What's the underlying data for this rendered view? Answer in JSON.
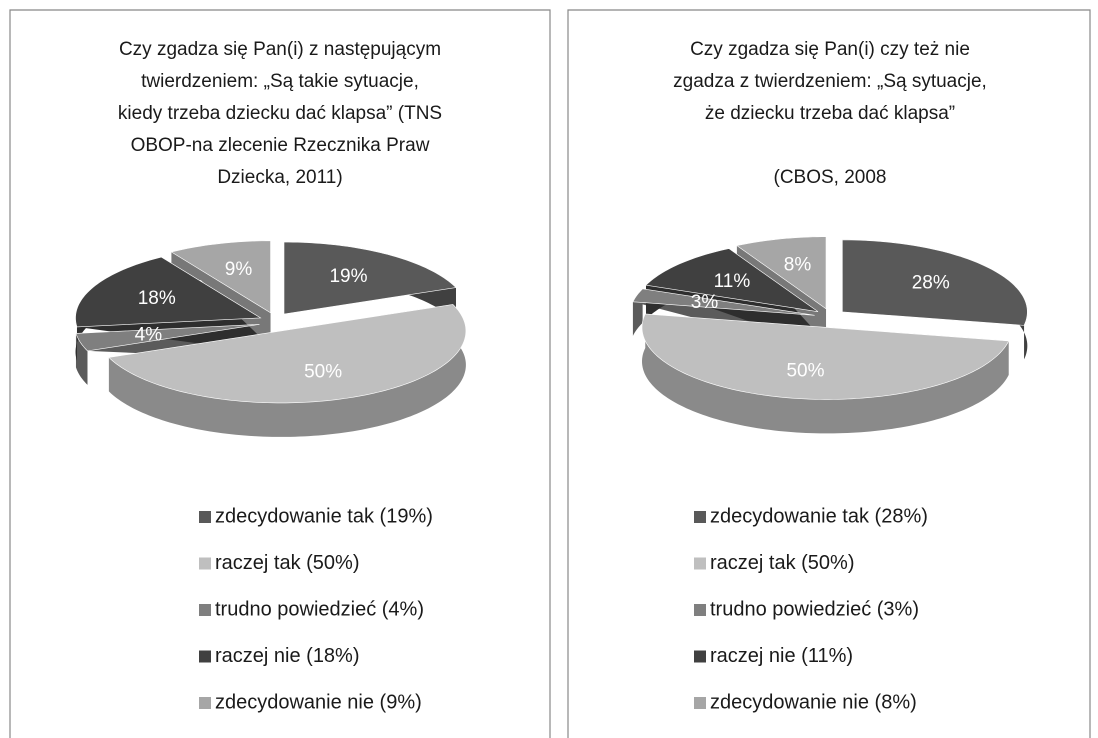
{
  "chart_data": [
    {
      "type": "pie",
      "title": [
        "Czy zgadza się Pan(i) z następującym",
        "twierdzeniem: „Są takie sytuacje,",
        "kiedy trzeba dziecku dać klapsa” (TNS",
        "OBOP-na zlecenie Rzecznika Praw",
        "Dziecka, 2011)"
      ],
      "categories": [
        "zdecydowanie tak (19%)",
        "raczej tak (50%)",
        "trudno powiedzieć (4%)",
        "raczej nie (18%)",
        "zdecydowanie nie (9%)"
      ],
      "values": [
        19,
        50,
        4,
        18,
        9
      ],
      "value_labels": [
        "19%",
        "50%",
        "4%",
        "18%",
        "9%"
      ],
      "colors": [
        "#595959",
        "#bfbfbf",
        "#7f7f7f",
        "#404040",
        "#a6a6a6"
      ]
    },
    {
      "type": "pie",
      "title": [
        "Czy zgadza się Pan(i) czy też nie",
        "zgadza  z twierdzeniem: „Są sytuacje,",
        "że dziecku trzeba dać klapsa”"
      ],
      "subtitle": "(CBOS,  2008",
      "categories": [
        "zdecydowanie tak (28%)",
        "raczej tak (50%)",
        "trudno powiedzieć (3%)",
        "raczej nie (11%)",
        "zdecydowanie nie (8%)"
      ],
      "values": [
        28,
        50,
        3,
        11,
        8
      ],
      "value_labels": [
        "28%",
        "50%",
        "3%",
        "11%",
        "8%"
      ],
      "colors": [
        "#595959",
        "#bfbfbf",
        "#7f7f7f",
        "#404040",
        "#a6a6a6"
      ]
    }
  ]
}
